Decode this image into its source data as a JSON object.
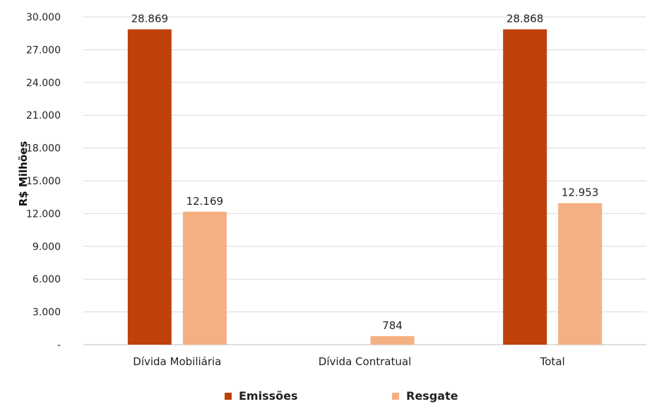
{
  "chart_data": {
    "type": "bar",
    "ylabel": "R$ Milhões",
    "xlabel": "",
    "ylim": [
      0,
      30000
    ],
    "yticks": [
      0,
      3000,
      6000,
      9000,
      12000,
      15000,
      18000,
      21000,
      24000,
      27000,
      30000
    ],
    "ytick_labels": [
      "-",
      "3.000",
      "6.000",
      "9.000",
      "12.000",
      "15.000",
      "18.000",
      "21.000",
      "24.000",
      "27.000",
      "30.000"
    ],
    "categories": [
      "Dívida Mobiliária",
      "Dívida Contratual",
      "Total"
    ],
    "series": [
      {
        "name": "Emissões",
        "color": "#bf410b",
        "values": [
          28869,
          0,
          28868
        ],
        "labels": [
          "28.869",
          "",
          "28.868"
        ]
      },
      {
        "name": "Resgate",
        "color": "#f4b083",
        "values": [
          12169,
          784,
          12953
        ],
        "labels": [
          "12.169",
          "784",
          "12.953"
        ]
      }
    ],
    "grid": true,
    "legend_position": "bottom"
  }
}
